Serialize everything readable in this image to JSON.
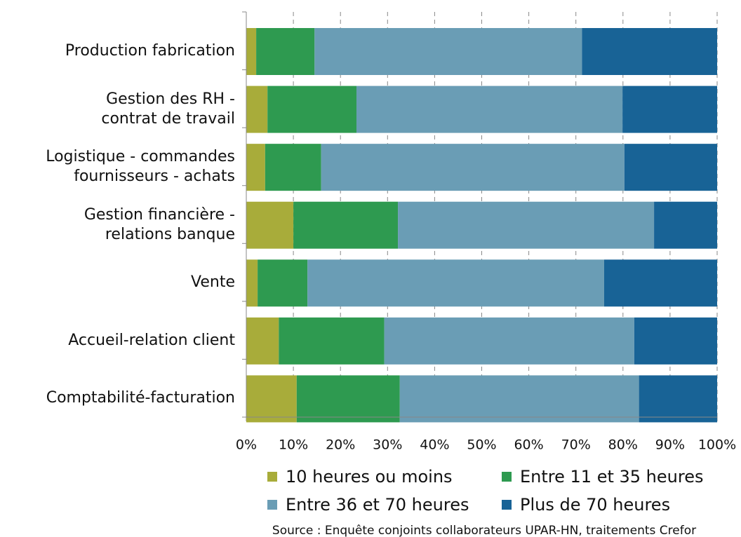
{
  "chart_data": {
    "type": "stacked_bar_horizontal",
    "categories": [
      "Production fabrication",
      "Gestion des RH -\ncontrat de travail",
      "Logistique - commandes\nfournisseurs - achats",
      "Gestion financière -\nrelations banque",
      "Vente",
      "Accueil-relation client",
      "Comptabilité-facturation"
    ],
    "series": [
      {
        "name": "10 heures ou moins",
        "color": "#a8ac3a",
        "values": [
          2.1,
          4.5,
          4.0,
          10.0,
          2.4,
          6.9,
          10.7
        ]
      },
      {
        "name": "Entre 11 et 35 heures",
        "color": "#2e9a50",
        "values": [
          12.4,
          18.9,
          11.9,
          22.2,
          10.6,
          22.4,
          21.9
        ]
      },
      {
        "name": "Entre 36 et 70 heures",
        "color": "#6a9db5",
        "values": [
          56.8,
          56.5,
          64.4,
          54.4,
          63.0,
          53.1,
          50.8
        ]
      },
      {
        "name": "Plus de 70 heures",
        "color": "#186396",
        "values": [
          28.7,
          20.1,
          19.7,
          13.4,
          24.0,
          17.6,
          16.6
        ]
      }
    ],
    "xlim": [
      0,
      100
    ],
    "xticks": [
      {
        "value": 0,
        "label": "0%"
      },
      {
        "value": 10,
        "label": "10%"
      },
      {
        "value": 20,
        "label": "20%"
      },
      {
        "value": 30,
        "label": "30%"
      },
      {
        "value": 40,
        "label": "40%"
      },
      {
        "value": 50,
        "label": "50%"
      },
      {
        "value": 60,
        "label": "60%"
      },
      {
        "value": 70,
        "label": "70%"
      },
      {
        "value": 80,
        "label": "80%"
      },
      {
        "value": 90,
        "label": "90%"
      },
      {
        "value": 100,
        "label": "100%"
      }
    ],
    "grid": true,
    "legend": "bottom",
    "source": "Source : Enquête conjoints collaborateurs UPAR-HN, traitements Crefor"
  }
}
